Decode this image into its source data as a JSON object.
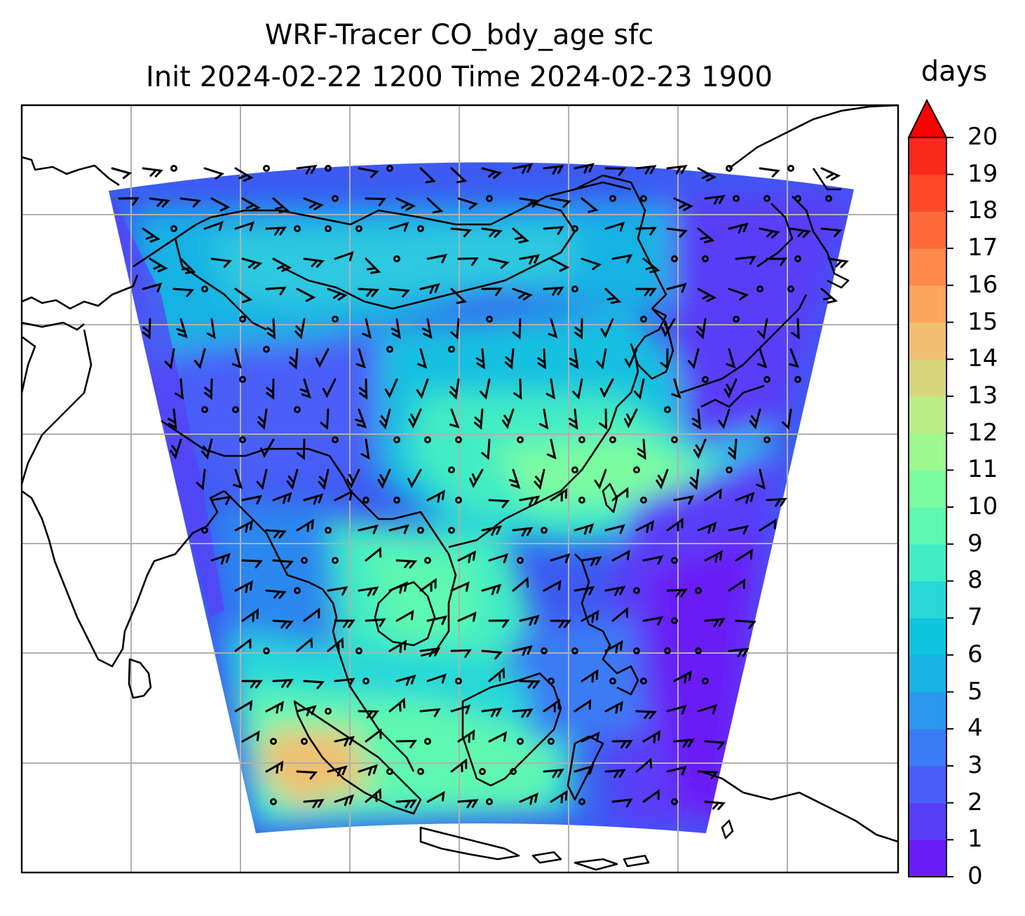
{
  "title": {
    "line1": "WRF-Tracer CO_bdy_age sfc",
    "line2": "Init 2024-02-22 1200 Time 2024-02-23 1900"
  },
  "colorbar": {
    "label": "days",
    "min": 0,
    "max": 20,
    "extend": "max",
    "ticks": [
      "0",
      "1",
      "2",
      "3",
      "4",
      "5",
      "6",
      "7",
      "8",
      "9",
      "10",
      "11",
      "12",
      "13",
      "14",
      "15",
      "16",
      "17",
      "18",
      "19",
      "20"
    ],
    "colors": [
      "#6a1cf6",
      "#5a3ef8",
      "#4a5ef8",
      "#3a7cf4",
      "#2a98ee",
      "#18b2e4",
      "#10c4e0",
      "#28d8d8",
      "#40ecc4",
      "#5ef8b0",
      "#7cfca0",
      "#9cfa90",
      "#bcee86",
      "#d8d67c",
      "#f0c070",
      "#fca65e",
      "#fe8a4c",
      "#fe6a3a",
      "#fc4a28",
      "#f82a18"
    ],
    "extend_color": "#fe0000"
  },
  "map": {
    "projection": "lambert-conformal",
    "gridlines": true,
    "grid_color": "#b0b0b0",
    "domain": "WRF domain, South/East Asia",
    "field_colors": {
      "low": "#5a3ef8",
      "mid": "#18b2e4",
      "mid_high": "#40ecc4",
      "high": "#7cfca0",
      "peak": "#f0c070"
    },
    "wind_barbs": true
  }
}
